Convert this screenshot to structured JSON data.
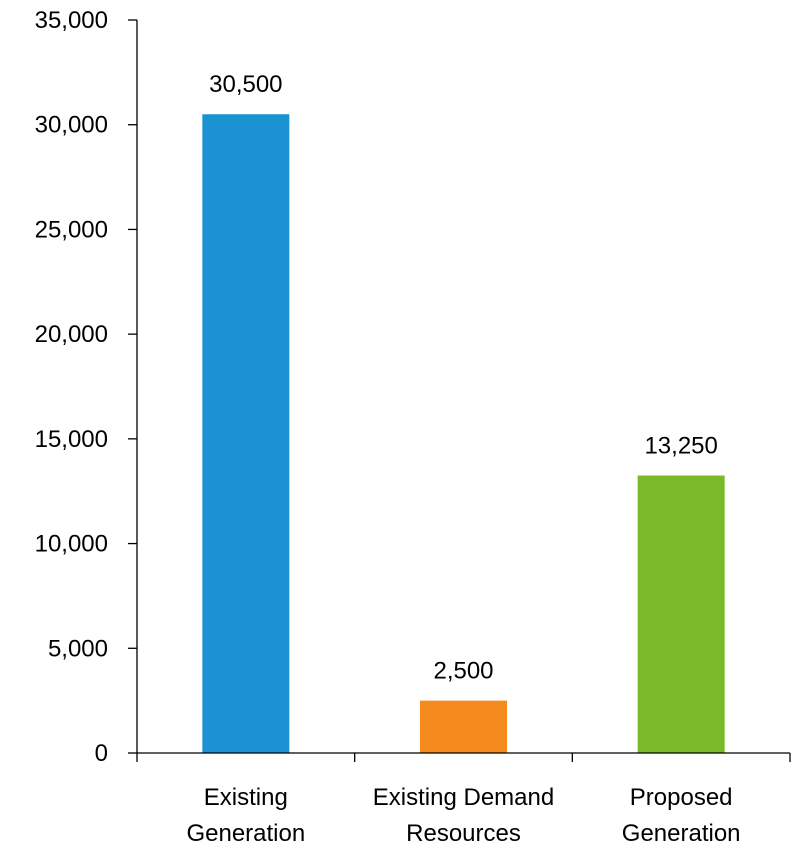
{
  "chart_data": {
    "type": "bar",
    "categories": [
      [
        "Existing",
        "Generation"
      ],
      [
        "Existing Demand",
        "Resources"
      ],
      [
        "Proposed",
        "Generation"
      ]
    ],
    "values": [
      30500,
      2500,
      13250
    ],
    "data_labels": [
      "30,500",
      "2,500",
      "13,250"
    ],
    "colors": [
      "#1b93d3",
      "#f68a1f",
      "#7aba2a"
    ],
    "ylim": [
      0,
      35000
    ],
    "yticks": [
      0,
      5000,
      10000,
      15000,
      20000,
      25000,
      30000,
      35000
    ],
    "ytick_labels": [
      "0",
      "5,000",
      "10,000",
      "15,000",
      "20,000",
      "25,000",
      "30,000",
      "35,000"
    ],
    "grid": false,
    "legend": "none",
    "title": "",
    "xlabel": "",
    "ylabel": ""
  }
}
